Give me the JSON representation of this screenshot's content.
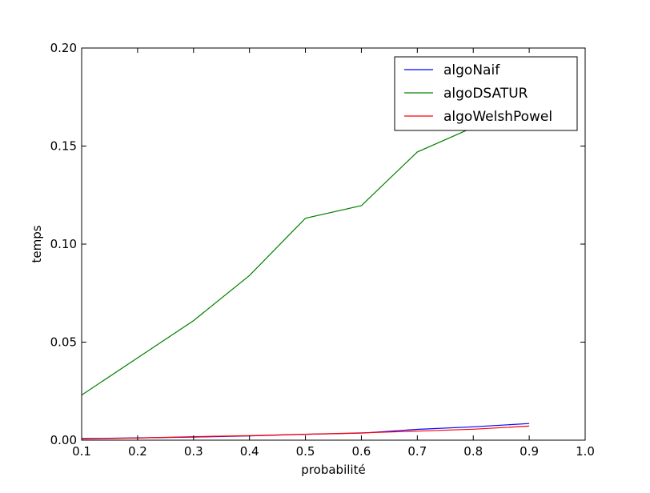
{
  "chart_data": {
    "type": "line",
    "title": "",
    "xlabel": "probabilité",
    "ylabel": "temps",
    "xlim": [
      0.1,
      1.0
    ],
    "ylim": [
      0.0,
      0.2
    ],
    "xticks": [
      "0.1",
      "0.2",
      "0.3",
      "0.4",
      "0.5",
      "0.6",
      "0.7",
      "0.8",
      "0.9",
      "1.0"
    ],
    "yticks": [
      "0.00",
      "0.05",
      "0.10",
      "0.15",
      "0.20"
    ],
    "grid": false,
    "legend_position": "top-right",
    "x": [
      0.1,
      0.2,
      0.3,
      0.4,
      0.5,
      0.6,
      0.7,
      0.8,
      0.9
    ],
    "series": [
      {
        "name": "algoNaif",
        "color": "#0000ff",
        "values": [
          0.0008,
          0.0012,
          0.0016,
          0.0022,
          0.003,
          0.0036,
          0.0055,
          0.0068,
          0.0085
        ]
      },
      {
        "name": "algoDSATUR",
        "color": "#008000",
        "values": [
          0.023,
          0.042,
          0.061,
          0.084,
          0.1132,
          0.1196,
          0.147,
          0.1595,
          0.172
        ]
      },
      {
        "name": "algoWelshPowel",
        "color": "#ff0000",
        "values": [
          0.0006,
          0.0011,
          0.0018,
          0.0023,
          0.003,
          0.0037,
          0.0046,
          0.0056,
          0.0072
        ]
      }
    ]
  }
}
